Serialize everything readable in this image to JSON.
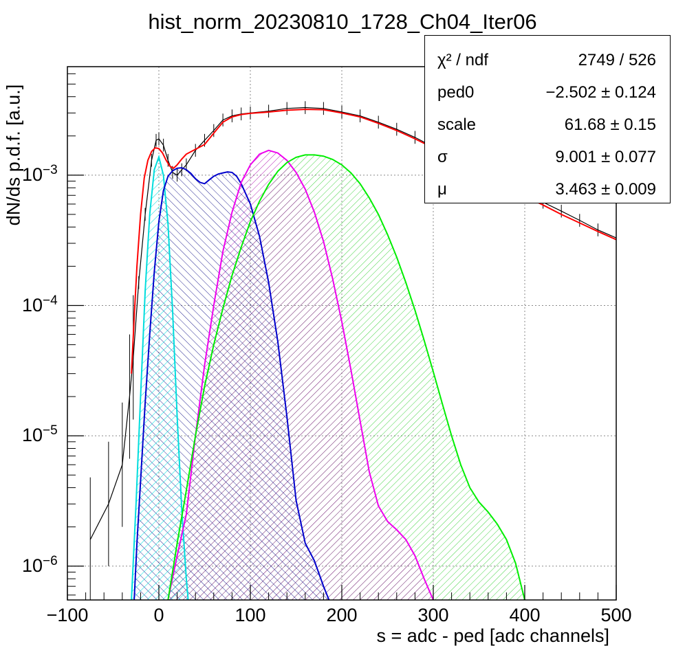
{
  "chart_data": {
    "type": "line",
    "title": "hist_norm_20230810_1728_Ch04_Iter06",
    "xlabel": "s = adc - ped [adc channels]",
    "ylabel": "dN/ds p.d.f. [a.u.]",
    "xlim": [
      -100,
      500
    ],
    "ylim": [
      5.5e-07,
      0.0068
    ],
    "yscale": "log",
    "grid": true,
    "x_ticks": [
      {
        "value": -100,
        "label": "−100"
      },
      {
        "value": 0,
        "label": "0"
      },
      {
        "value": 100,
        "label": "100"
      },
      {
        "value": 200,
        "label": "200"
      },
      {
        "value": 300,
        "label": "300"
      },
      {
        "value": 400,
        "label": "400"
      },
      {
        "value": 500,
        "label": "500"
      }
    ],
    "y_ticks": [
      {
        "value": 1e-06,
        "base": "10",
        "exp": "−6"
      },
      {
        "value": 1e-05,
        "base": "10",
        "exp": "−5"
      },
      {
        "value": 0.0001,
        "base": "10",
        "exp": "−4"
      },
      {
        "value": 0.001,
        "base": "10",
        "exp": "−3"
      }
    ],
    "data_histogram": {
      "color": "#000000",
      "x": [
        -75,
        -55,
        -40,
        -32,
        -28,
        -22,
        -15,
        -8,
        -3,
        0,
        5,
        10,
        15,
        20,
        25,
        30,
        40,
        50,
        60,
        70,
        80,
        90,
        100,
        120,
        140,
        160,
        180,
        200,
        220,
        240,
        260,
        280,
        300,
        320,
        340,
        360,
        380,
        400,
        420,
        440,
        460,
        480,
        500
      ],
      "y": [
        1.6e-06,
        3e-06,
        6e-06,
        2e-05,
        4e-05,
        0.00015,
        0.0005,
        0.0013,
        0.00185,
        0.0019,
        0.0017,
        0.0013,
        0.00105,
        0.001,
        0.0011,
        0.0012,
        0.00155,
        0.00185,
        0.0022,
        0.00265,
        0.00285,
        0.00295,
        0.003,
        0.0031,
        0.00325,
        0.0033,
        0.00325,
        0.00305,
        0.00285,
        0.00255,
        0.00225,
        0.00195,
        0.00165,
        0.0014,
        0.0012,
        0.001,
        0.00086,
        0.00072,
        0.00062,
        0.00053,
        0.00045,
        0.00038,
        0.00033
      ]
    },
    "series": [
      {
        "color": "#ff0000",
        "fill": false,
        "x": [
          -30,
          -27,
          -24,
          -20,
          -16,
          -12,
          -8,
          -4,
          0,
          4,
          8,
          12,
          16,
          20,
          25,
          30,
          40,
          50,
          60,
          70,
          80,
          90,
          100,
          120,
          140,
          160,
          180,
          200,
          220,
          240,
          260,
          280,
          300,
          320,
          340,
          360,
          380,
          400,
          420,
          440,
          460,
          480,
          500
        ],
        "y": [
          3e-05,
          8e-05,
          0.0002,
          0.0005,
          0.00095,
          0.0013,
          0.00152,
          0.00162,
          0.0016,
          0.00148,
          0.0013,
          0.00117,
          0.00113,
          0.0012,
          0.00133,
          0.00145,
          0.00158,
          0.00172,
          0.0021,
          0.00255,
          0.0028,
          0.00292,
          0.00298,
          0.00305,
          0.00315,
          0.0032,
          0.00318,
          0.003,
          0.0028,
          0.0025,
          0.0022,
          0.0019,
          0.00162,
          0.00137,
          0.00115,
          0.00097,
          0.00082,
          0.00069,
          0.00059,
          0.0005,
          0.00043,
          0.00037,
          0.00032
        ]
      },
      {
        "color": "#00dddd",
        "fill": true,
        "x": [
          -30,
          -25,
          -20,
          -15,
          -10,
          -5,
          0,
          5,
          10,
          15,
          20,
          25,
          30,
          32
        ],
        "y": [
          5.5e-07,
          3e-06,
          2e-05,
          0.00013,
          0.0005,
          0.0011,
          0.00138,
          0.001,
          0.00042,
          9e-05,
          1.4e-05,
          2.7e-06,
          8e-07,
          5.5e-07
        ]
      },
      {
        "color": "#0000cc",
        "fill": true,
        "x": [
          -27,
          -24,
          -20,
          -15,
          -10,
          -5,
          0,
          5,
          10,
          15,
          20,
          25,
          30,
          35,
          40,
          45,
          50,
          55,
          60,
          65,
          70,
          75,
          80,
          85,
          90,
          100,
          110,
          120,
          130,
          140,
          150,
          160,
          170,
          180,
          186
        ],
        "y": [
          5.5e-07,
          1.5e-06,
          4.5e-06,
          1.8e-05,
          6e-05,
          0.00018,
          0.00044,
          0.00076,
          0.00098,
          0.00108,
          0.00113,
          0.00114,
          0.0011,
          0.00103,
          0.00094,
          0.00088,
          0.00086,
          0.00092,
          0.00098,
          0.00102,
          0.00104,
          0.00106,
          0.00105,
          0.00098,
          0.00086,
          0.0006,
          0.00034,
          0.00015,
          5.3e-05,
          1.4e-05,
          3.2e-06,
          1.5e-06,
          1.1e-06,
          7e-07,
          5.5e-07
        ]
      },
      {
        "color": "#ee00ee",
        "fill": true,
        "x": [
          10,
          20,
          30,
          40,
          50,
          60,
          70,
          80,
          90,
          100,
          110,
          120,
          130,
          140,
          150,
          160,
          170,
          180,
          190,
          200,
          210,
          220,
          230,
          240,
          250,
          260,
          270,
          280,
          290,
          300
        ],
        "y": [
          5.5e-07,
          1.2e-06,
          2.5e-06,
          1e-05,
          3.5e-05,
          0.0001,
          0.00026,
          0.00052,
          0.00088,
          0.0012,
          0.00145,
          0.00155,
          0.00148,
          0.0013,
          0.00105,
          0.00078,
          0.00052,
          0.00031,
          0.00016,
          7.5e-05,
          3.2e-05,
          1.3e-05,
          5.3e-06,
          2.9e-06,
          2.2e-06,
          1.9e-06,
          1.6e-06,
          1.2e-06,
          8e-07,
          5.5e-07
        ]
      },
      {
        "color": "#00ee00",
        "fill": true,
        "x": [
          10,
          20,
          30,
          40,
          50,
          60,
          70,
          80,
          90,
          100,
          110,
          120,
          130,
          140,
          150,
          160,
          170,
          180,
          190,
          200,
          210,
          220,
          230,
          240,
          250,
          260,
          270,
          280,
          290,
          300,
          310,
          320,
          330,
          340,
          350,
          360,
          370,
          380,
          390,
          400
        ],
        "y": [
          5.5e-07,
          1.5e-06,
          3.8e-06,
          1e-05,
          2.4e-05,
          5e-05,
          9.5e-05,
          0.00017,
          0.00028,
          0.00044,
          0.00063,
          0.00085,
          0.00107,
          0.00125,
          0.00137,
          0.00143,
          0.00143,
          0.0014,
          0.00132,
          0.0012,
          0.00104,
          0.00086,
          0.00067,
          0.0005,
          0.00035,
          0.000235,
          0.00015,
          9.2e-05,
          5.4e-05,
          3.1e-05,
          1.75e-05,
          1e-05,
          6e-06,
          4e-06,
          3.1e-06,
          2.6e-06,
          2.1e-06,
          1.6e-06,
          1.05e-06,
          5.5e-07
        ]
      }
    ]
  },
  "stats": [
    {
      "name": "χ² / ndf",
      "value": "2749 / 526"
    },
    {
      "name": "ped0",
      "value": "−2.502 ± 0.124"
    },
    {
      "name": "scale",
      "value": "61.68 ± 0.15"
    },
    {
      "name": "σ",
      "value": "9.001 ± 0.077"
    },
    {
      "name": "μ",
      "value": "3.463 ± 0.009"
    }
  ]
}
